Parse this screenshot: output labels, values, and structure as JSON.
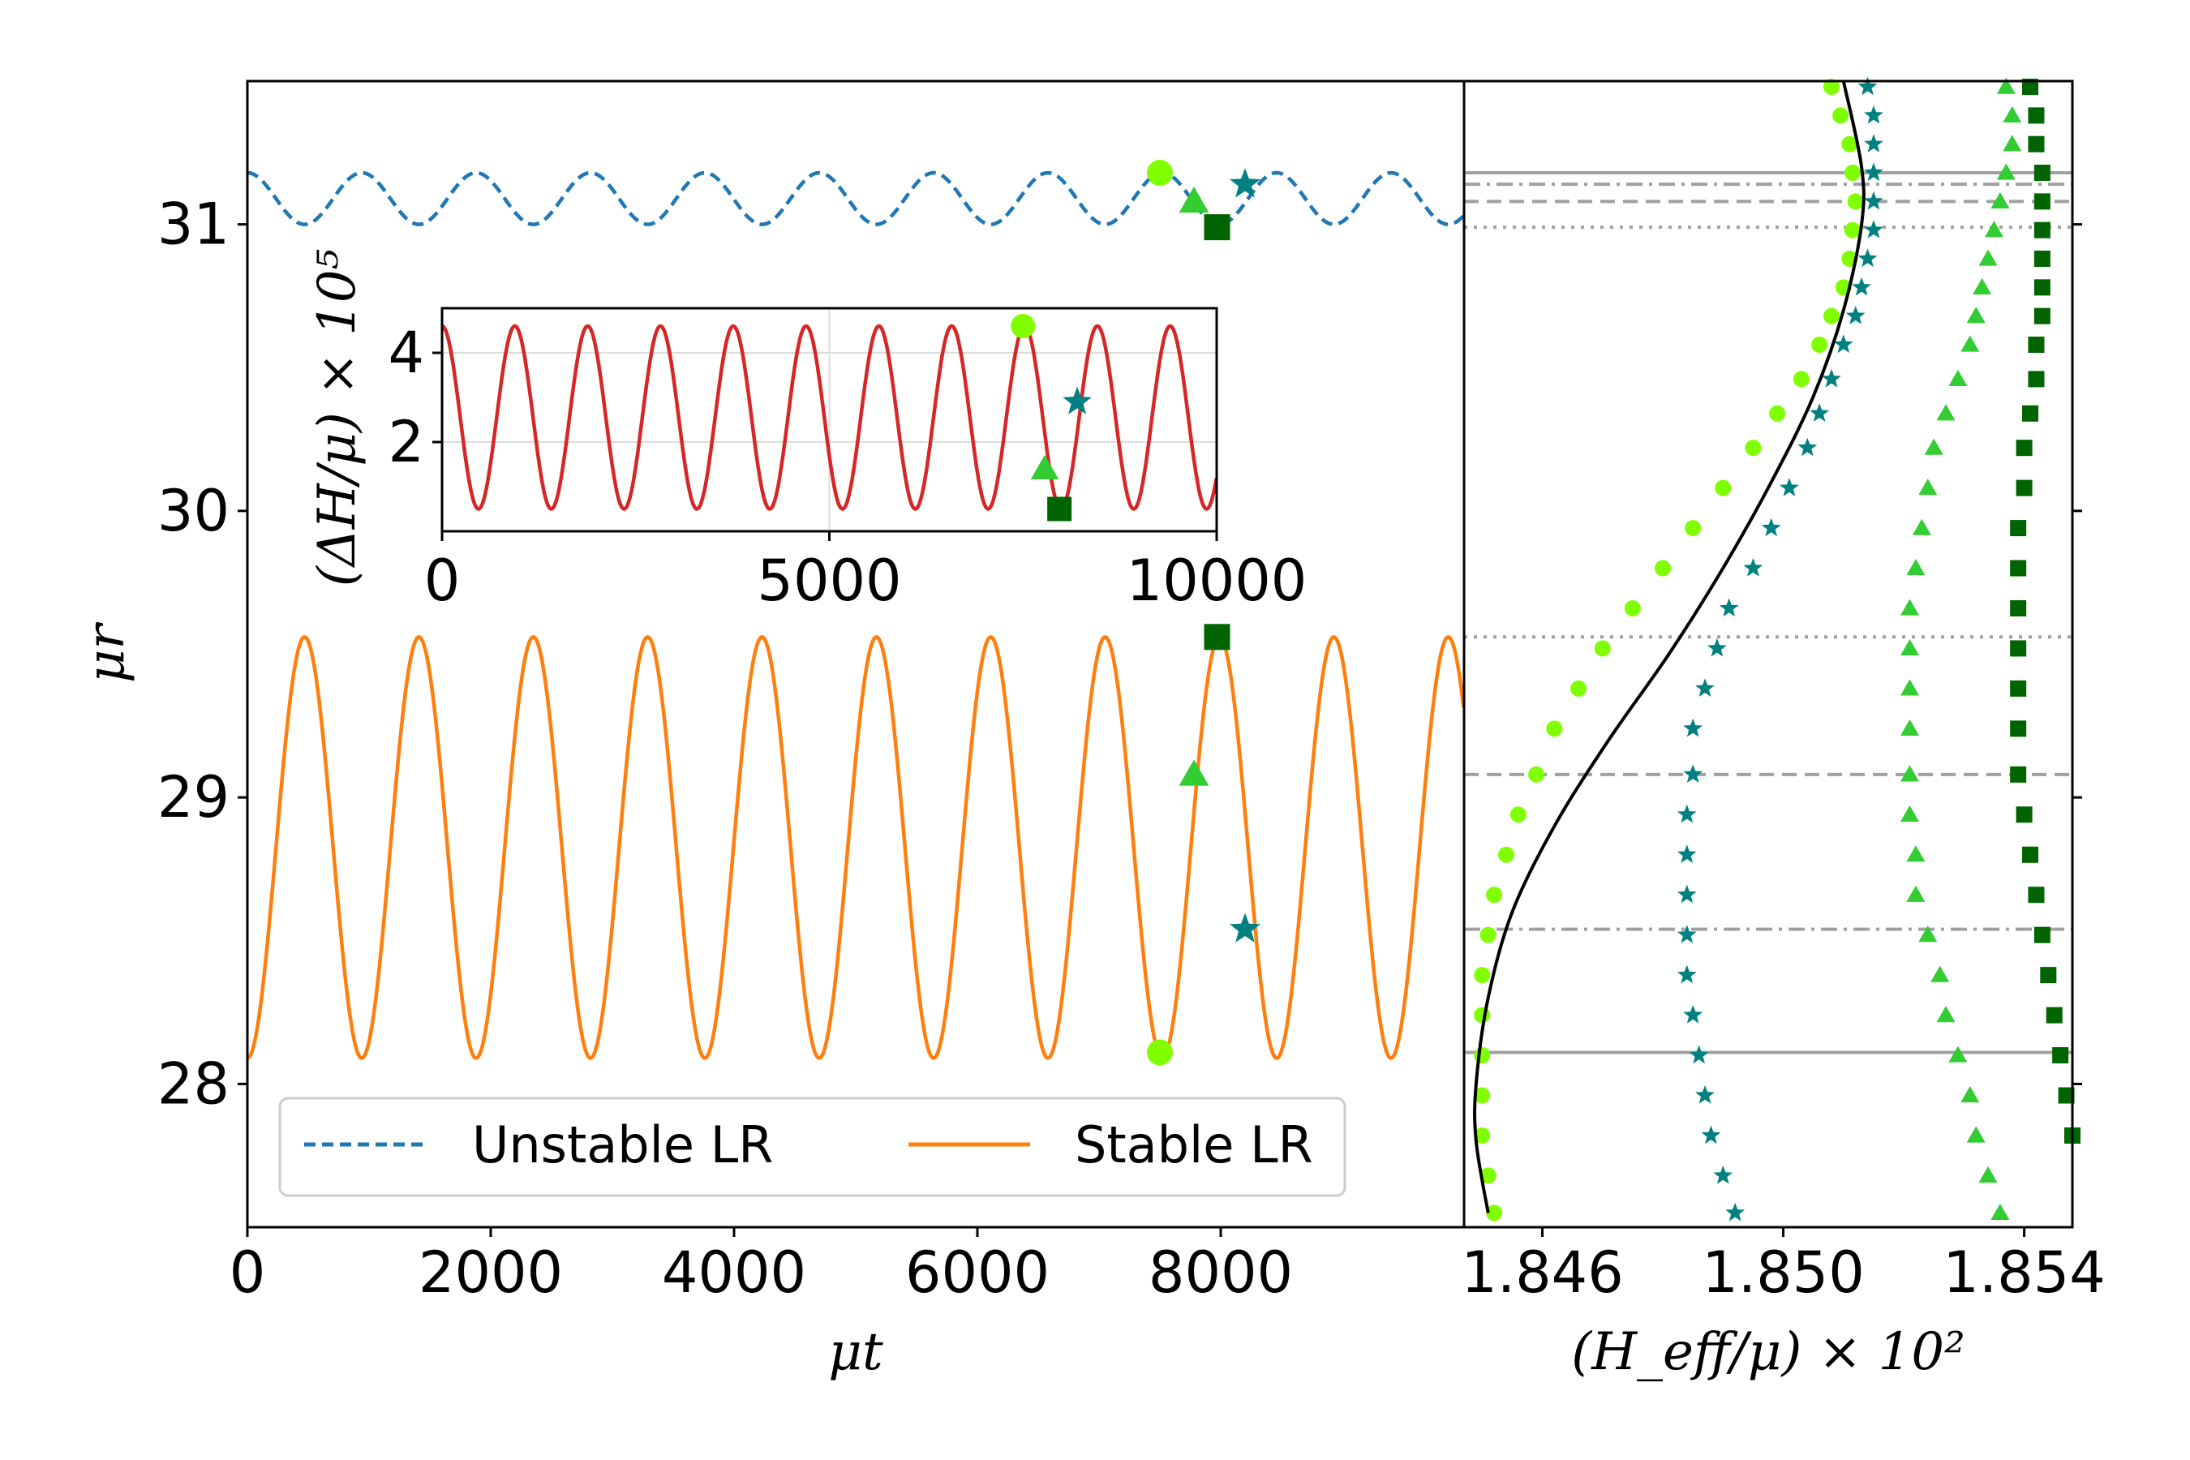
{
  "chart_data": [
    {
      "panel": "main",
      "type": "line",
      "xlabel": "μt",
      "ylabel": "μr",
      "xlim": [
        0,
        10000
      ],
      "ylim": [
        27.5,
        31.5
      ],
      "xticks": [
        0,
        2000,
        4000,
        6000,
        8000
      ],
      "xtick_labels": [
        "0",
        "2000",
        "4000",
        "6000",
        "8000"
      ],
      "yticks": [
        28,
        29,
        30,
        31
      ],
      "ytick_labels": [
        "28",
        "29",
        "30",
        "31"
      ],
      "legend_position": "lower-center",
      "series": [
        {
          "name": "Unstable LR",
          "color": "#1f77b4",
          "style": "dashed",
          "period": 940,
          "min": 31.0,
          "max": 31.18,
          "phase_of_min": 470
        },
        {
          "name": "Stable LR",
          "color": "#ff7f0e",
          "style": "solid",
          "period": 940,
          "min": 28.09,
          "max": 29.56,
          "phase_of_max": 470
        }
      ],
      "markers": [
        {
          "shape": "circle",
          "color": "#7fff00",
          "x": 7500,
          "y": 31.18
        },
        {
          "shape": "triangle",
          "color": "#32cd32",
          "x": 7780,
          "y": 31.08
        },
        {
          "shape": "star",
          "color": "#008080",
          "x": 8200,
          "y": 31.14
        },
        {
          "shape": "square",
          "color": "#006400",
          "x": 7970,
          "y": 30.99
        },
        {
          "shape": "circle",
          "color": "#7fff00",
          "x": 7500,
          "y": 28.11
        },
        {
          "shape": "triangle",
          "color": "#32cd32",
          "x": 7780,
          "y": 29.08
        },
        {
          "shape": "star",
          "color": "#008080",
          "x": 8200,
          "y": 28.54
        },
        {
          "shape": "square",
          "color": "#006400",
          "x": 7970,
          "y": 29.56
        }
      ]
    },
    {
      "panel": "inset",
      "type": "line",
      "xlabel": "",
      "ylabel": "(ΔH/μ) × 10⁵",
      "xlim": [
        0,
        10000
      ],
      "ylim": [
        0,
        5
      ],
      "xticks": [
        0,
        5000,
        10000
      ],
      "xtick_labels": [
        "0",
        "5000",
        "10000"
      ],
      "yticks": [
        2,
        4
      ],
      "ytick_labels": [
        "2",
        "4"
      ],
      "grid": true,
      "series": [
        {
          "name": "",
          "color": "#d62728",
          "style": "solid",
          "period": 940,
          "min": 0.5,
          "max": 4.6,
          "phase_of_max": 0
        }
      ],
      "markers": [
        {
          "shape": "circle",
          "color": "#7fff00",
          "x": 7500,
          "y": 4.6
        },
        {
          "shape": "triangle",
          "color": "#32cd32",
          "x": 7780,
          "y": 1.4
        },
        {
          "shape": "star",
          "color": "#008080",
          "x": 8200,
          "y": 2.9
        },
        {
          "shape": "square",
          "color": "#006400",
          "x": 7970,
          "y": 0.5
        }
      ]
    },
    {
      "panel": "right",
      "type": "scatter",
      "xlabel": "(H_eff/μ) × 10²",
      "ylabel": "",
      "xlim": [
        1.8447,
        1.8548
      ],
      "ylim": [
        27.5,
        31.5
      ],
      "xticks": [
        1.846,
        1.85,
        1.854
      ],
      "xtick_labels": [
        "1.846",
        "1.850",
        "1.854"
      ],
      "curve": {
        "color": "#000000",
        "points": [
          [
            1.8451,
            27.55
          ],
          [
            1.8449,
            27.8
          ],
          [
            1.8449,
            28.0
          ],
          [
            1.8451,
            28.3
          ],
          [
            1.8455,
            28.6
          ],
          [
            1.8462,
            28.9
          ],
          [
            1.8471,
            29.2
          ],
          [
            1.8481,
            29.5
          ],
          [
            1.849,
            29.8
          ],
          [
            1.8498,
            30.1
          ],
          [
            1.8505,
            30.4
          ],
          [
            1.851,
            30.7
          ],
          [
            1.8513,
            31.0
          ],
          [
            1.8513,
            31.2
          ],
          [
            1.851,
            31.5
          ]
        ]
      },
      "hlines": [
        {
          "y": 31.18,
          "style": "solid"
        },
        {
          "y": 31.14,
          "style": "dashdot"
        },
        {
          "y": 31.08,
          "style": "dashed"
        },
        {
          "y": 30.99,
          "style": "dotted"
        },
        {
          "y": 29.56,
          "style": "dotted"
        },
        {
          "y": 29.08,
          "style": "dashed"
        },
        {
          "y": 28.54,
          "style": "dashdot"
        },
        {
          "y": 28.11,
          "style": "solid"
        }
      ],
      "series": [
        {
          "marker": "circle",
          "color": "#7fff00",
          "points": [
            [
              1.8508,
              31.48
            ],
            [
              1.85095,
              31.38
            ],
            [
              1.8511,
              31.28
            ],
            [
              1.85115,
              31.18
            ],
            [
              1.8512,
              31.08
            ],
            [
              1.85115,
              30.98
            ],
            [
              1.8511,
              30.88
            ],
            [
              1.851,
              30.78
            ],
            [
              1.8508,
              30.68
            ],
            [
              1.8506,
              30.58
            ],
            [
              1.8503,
              30.46
            ],
            [
              1.8499,
              30.34
            ],
            [
              1.8495,
              30.22
            ],
            [
              1.849,
              30.08
            ],
            [
              1.8485,
              29.94
            ],
            [
              1.848,
              29.8
            ],
            [
              1.8475,
              29.66
            ],
            [
              1.847,
              29.52
            ],
            [
              1.8466,
              29.38
            ],
            [
              1.8462,
              29.24
            ],
            [
              1.8459,
              29.08
            ],
            [
              1.8456,
              28.94
            ],
            [
              1.8454,
              28.8
            ],
            [
              1.8452,
              28.66
            ],
            [
              1.8451,
              28.52
            ],
            [
              1.845,
              28.38
            ],
            [
              1.845,
              28.24
            ],
            [
              1.845,
              28.1
            ],
            [
              1.845,
              27.96
            ],
            [
              1.845,
              27.82
            ],
            [
              1.8451,
              27.68
            ],
            [
              1.8452,
              27.55
            ]
          ]
        },
        {
          "marker": "star",
          "color": "#008080",
          "points": [
            [
              1.8514,
              31.48
            ],
            [
              1.8515,
              31.38
            ],
            [
              1.8515,
              31.28
            ],
            [
              1.8515,
              31.18
            ],
            [
              1.8515,
              31.08
            ],
            [
              1.8515,
              30.98
            ],
            [
              1.8514,
              30.88
            ],
            [
              1.8513,
              30.78
            ],
            [
              1.8512,
              30.68
            ],
            [
              1.851,
              30.58
            ],
            [
              1.8508,
              30.46
            ],
            [
              1.8506,
              30.34
            ],
            [
              1.8504,
              30.22
            ],
            [
              1.8501,
              30.08
            ],
            [
              1.8498,
              29.94
            ],
            [
              1.8495,
              29.8
            ],
            [
              1.8491,
              29.66
            ],
            [
              1.8489,
              29.52
            ],
            [
              1.8487,
              29.38
            ],
            [
              1.8485,
              29.24
            ],
            [
              1.8485,
              29.08
            ],
            [
              1.8484,
              28.94
            ],
            [
              1.8484,
              28.8
            ],
            [
              1.8484,
              28.66
            ],
            [
              1.8484,
              28.52
            ],
            [
              1.8484,
              28.38
            ],
            [
              1.8485,
              28.24
            ],
            [
              1.8486,
              28.1
            ],
            [
              1.8487,
              27.96
            ],
            [
              1.8488,
              27.82
            ],
            [
              1.849,
              27.68
            ],
            [
              1.8492,
              27.55
            ]
          ]
        },
        {
          "marker": "triangle",
          "color": "#32cd32",
          "points": [
            [
              1.8537,
              31.48
            ],
            [
              1.8538,
              31.38
            ],
            [
              1.8538,
              31.28
            ],
            [
              1.8537,
              31.18
            ],
            [
              1.8536,
              31.08
            ],
            [
              1.8535,
              30.98
            ],
            [
              1.8534,
              30.88
            ],
            [
              1.8533,
              30.78
            ],
            [
              1.8532,
              30.68
            ],
            [
              1.8531,
              30.58
            ],
            [
              1.8529,
              30.46
            ],
            [
              1.8527,
              30.34
            ],
            [
              1.8525,
              30.22
            ],
            [
              1.8524,
              30.08
            ],
            [
              1.8523,
              29.94
            ],
            [
              1.8522,
              29.8
            ],
            [
              1.8521,
              29.66
            ],
            [
              1.8521,
              29.52
            ],
            [
              1.8521,
              29.38
            ],
            [
              1.8521,
              29.24
            ],
            [
              1.8521,
              29.08
            ],
            [
              1.8521,
              28.94
            ],
            [
              1.8522,
              28.8
            ],
            [
              1.8522,
              28.66
            ],
            [
              1.8524,
              28.52
            ],
            [
              1.8526,
              28.38
            ],
            [
              1.8527,
              28.24
            ],
            [
              1.8529,
              28.1
            ],
            [
              1.8531,
              27.96
            ],
            [
              1.8532,
              27.82
            ],
            [
              1.8534,
              27.68
            ],
            [
              1.8536,
              27.55
            ]
          ]
        },
        {
          "marker": "square",
          "color": "#006400",
          "points": [
            [
              1.8541,
              31.48
            ],
            [
              1.8542,
              31.38
            ],
            [
              1.8542,
              31.28
            ],
            [
              1.8543,
              31.18
            ],
            [
              1.8543,
              31.08
            ],
            [
              1.8543,
              30.98
            ],
            [
              1.8543,
              30.88
            ],
            [
              1.8543,
              30.78
            ],
            [
              1.8543,
              30.68
            ],
            [
              1.8542,
              30.58
            ],
            [
              1.8542,
              30.46
            ],
            [
              1.8541,
              30.34
            ],
            [
              1.854,
              30.22
            ],
            [
              1.854,
              30.08
            ],
            [
              1.8539,
              29.94
            ],
            [
              1.8539,
              29.8
            ],
            [
              1.8539,
              29.66
            ],
            [
              1.8539,
              29.52
            ],
            [
              1.8539,
              29.38
            ],
            [
              1.8539,
              29.24
            ],
            [
              1.8539,
              29.08
            ],
            [
              1.854,
              28.94
            ],
            [
              1.8541,
              28.8
            ],
            [
              1.8542,
              28.66
            ],
            [
              1.8543,
              28.52
            ],
            [
              1.8544,
              28.38
            ],
            [
              1.8545,
              28.24
            ],
            [
              1.8546,
              28.1
            ],
            [
              1.8547,
              27.96
            ],
            [
              1.8548,
              27.82
            ],
            [
              1.8549,
              27.68
            ],
            [
              1.855,
              27.55
            ]
          ]
        }
      ]
    }
  ]
}
